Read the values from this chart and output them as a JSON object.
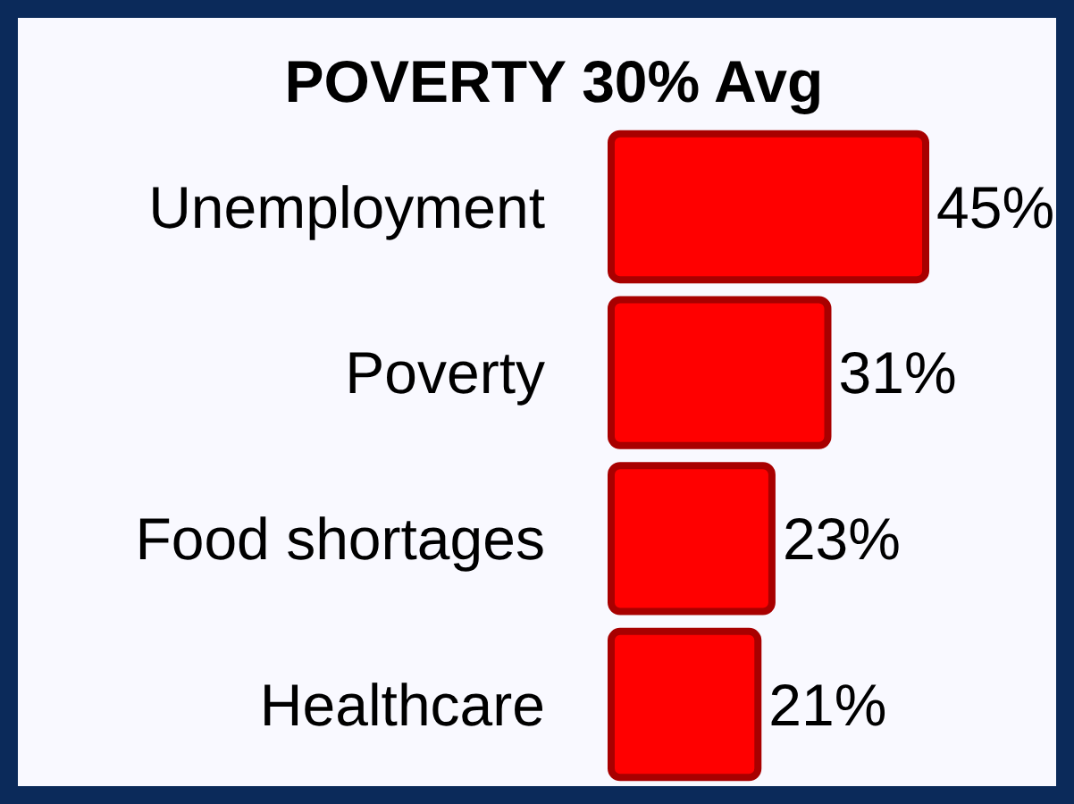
{
  "chart_data": {
    "type": "bar",
    "orientation": "horizontal",
    "title": "POVERTY 30% Avg",
    "categories": [
      "Unemployment",
      "Poverty",
      "Food shortages",
      "Healthcare"
    ],
    "values": [
      45,
      31,
      23,
      21
    ],
    "value_labels": [
      "45%",
      "31%",
      "23%",
      "21%"
    ],
    "color": "#ff0000"
  }
}
